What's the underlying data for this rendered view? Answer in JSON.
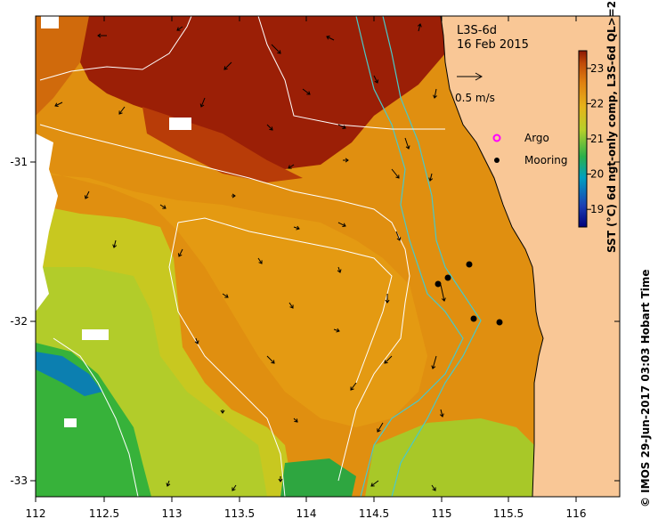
{
  "map": {
    "title_line1": "L3S-6d",
    "title_line2": "16 Feb 2015",
    "scale_label": "0.5 m/s",
    "x_ticks": [
      "112",
      "112.5",
      "113",
      "113.5",
      "114",
      "114.5",
      "115",
      "115.5",
      "116"
    ],
    "y_ticks": [
      "-31",
      "-32",
      "-33"
    ],
    "legend": [
      {
        "label": "Argo",
        "color": "#ff00ff"
      },
      {
        "label": "Mooring",
        "color": "#000000"
      }
    ],
    "colorbar": {
      "label": "SST (°C) 6d ngt-only comp, L3S-6d QL>=2",
      "ticks": [
        "23",
        "22",
        "21",
        "20",
        "19"
      ],
      "min": 18.5,
      "max": 23.5
    },
    "credit": "© IMOS 29-Jun-2017 03:03 Hobart Time",
    "colors": {
      "land": "#f9c796",
      "hot": "#9b1f06",
      "warm": "#e08f10",
      "mild": "#bccc22",
      "cool": "#2fae3c",
      "cold": "#0a5fa0",
      "shelf_contour": "#49c9c9",
      "deep_contour": "#ffffff"
    }
  }
}
